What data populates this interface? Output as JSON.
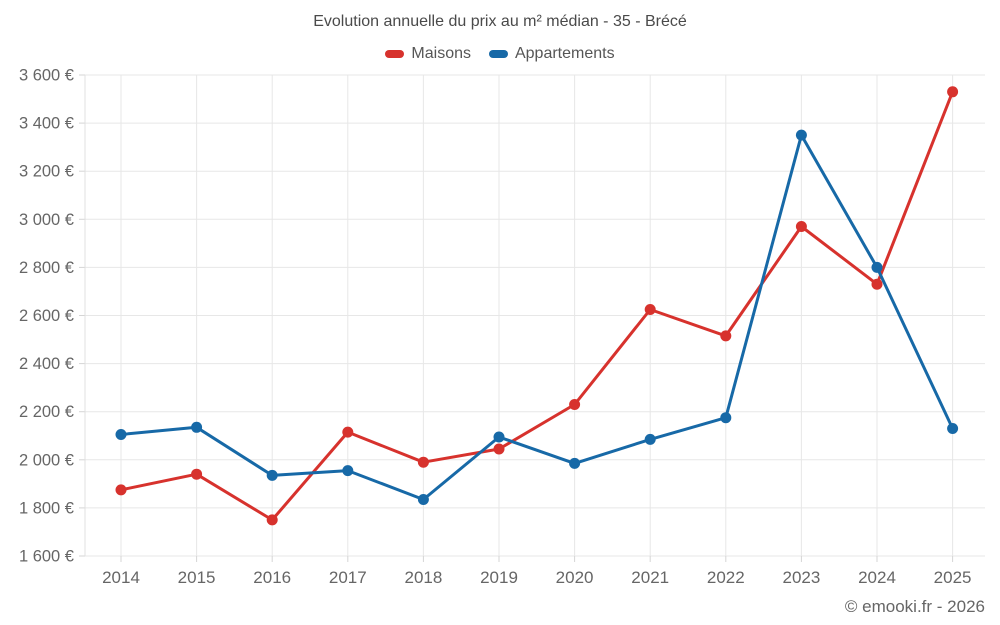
{
  "page": {
    "title": "Evolution annuelle du prix au m² médian - 35 - Brécé",
    "watermark": "© emooki.fr - 2026"
  },
  "legend": {
    "items": [
      {
        "label": "Maisons",
        "color": "#d7322d"
      },
      {
        "label": "Appartements",
        "color": "#1769a7"
      }
    ]
  },
  "chart_data": {
    "type": "line",
    "title": "Evolution annuelle du prix au m² médian - 35 - Brécé",
    "x": [
      2014,
      2015,
      2016,
      2017,
      2018,
      2019,
      2020,
      2021,
      2022,
      2023,
      2024,
      2025
    ],
    "series": [
      {
        "name": "Maisons",
        "color": "#d7322d",
        "values": [
          1875,
          1940,
          1750,
          2115,
          1990,
          2045,
          2230,
          2625,
          2515,
          2970,
          2730,
          3530
        ]
      },
      {
        "name": "Appartements",
        "color": "#1769a7",
        "values": [
          2105,
          2135,
          1935,
          1955,
          1835,
          2095,
          1985,
          2085,
          2175,
          3350,
          2800,
          2130
        ]
      }
    ],
    "ylim": [
      1600,
      3600
    ],
    "ytick_step": 200,
    "ytick_suffix": " €",
    "xlabel": "",
    "ylabel": "",
    "grid": true,
    "legend_position": "top",
    "axis_text_color": "#666666",
    "grid_color": "#e7e7e7"
  }
}
